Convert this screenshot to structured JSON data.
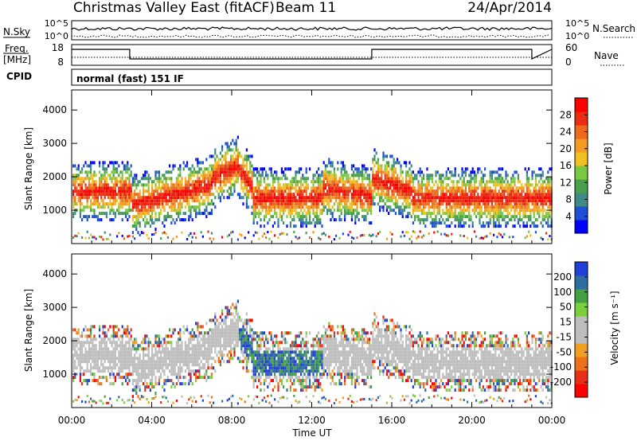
{
  "header": {
    "title": "Christmas Valley East (fitACF)",
    "beam": "Beam 11",
    "date": "24/Apr/2014"
  },
  "top_panels": {
    "nsky_label": "N.Sky",
    "nsky_ticks": [
      "10^5",
      "10^0"
    ],
    "nsearch_label": "N.Search",
    "freq_label_1": "Freq.",
    "freq_label_2": "[MHz]",
    "freq_ticks": [
      "18",
      "8"
    ],
    "nave_ticks": [
      "60",
      "0"
    ],
    "nave_label": "Nave",
    "cpid_label": "CPID",
    "cpid_text": "normal (fast) 151 IF"
  },
  "colors": {
    "power_scale": [
      "#0000ff",
      "#1f4fd6",
      "#3f8a84",
      "#4aa04a",
      "#7ac943",
      "#f0c020",
      "#f39a20",
      "#ee6a1a",
      "#e82d12",
      "#ff0000"
    ],
    "velocity_scale": [
      "#ff0000",
      "#e83018",
      "#ee7018",
      "#f0a020",
      "#bebebe",
      "#bebebe",
      "#7ad03a",
      "#44a044",
      "#2f6f9f",
      "#2040d8"
    ],
    "ground_scatter": "#bebebe"
  },
  "chart_data": [
    {
      "type": "heatmap",
      "name": "power",
      "ylabel": "Slant Range [km]",
      "yticks": [
        1000,
        2000,
        3000,
        4000
      ],
      "ylim": [
        0,
        4600
      ],
      "xlim_hours": [
        0,
        24
      ],
      "colorbar": {
        "label": "Power [dB]",
        "ticks": [
          "4",
          "8",
          "12",
          "16",
          "20",
          "24",
          "28"
        ]
      }
    },
    {
      "type": "heatmap",
      "name": "velocity",
      "ylabel": "Slant Range [km]",
      "yticks": [
        1000,
        2000,
        3000,
        4000
      ],
      "ylim": [
        0,
        4600
      ],
      "xlim_hours": [
        0,
        24
      ],
      "xlabel": "Time UT",
      "xticks": [
        "00:00",
        "04:00",
        "08:00",
        "12:00",
        "16:00",
        "20:00",
        "00:00"
      ],
      "colorbar": {
        "label": "Velocity [m s⁻¹]",
        "ticks": [
          "200",
          "100",
          "50",
          "15",
          "-15",
          "-50",
          "-100",
          "-200"
        ]
      }
    }
  ]
}
